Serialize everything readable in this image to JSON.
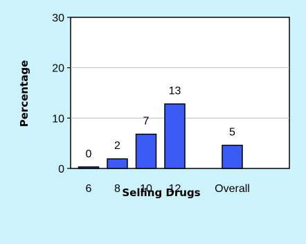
{
  "colors": {
    "background": "#ccf2fc",
    "plot_area": "#ffffff",
    "bar_fill": "#3a5cf5",
    "gridline": "#bfbfbf"
  },
  "chart_data": {
    "type": "bar",
    "title": "",
    "xlabel": "Selling Drugs",
    "ylabel": "Percentage",
    "categories": [
      "6",
      "8",
      "10",
      "12",
      "Overall"
    ],
    "category_slots": [
      0,
      1,
      2,
      3,
      5
    ],
    "values": [
      0.3,
      1.9,
      6.8,
      12.8,
      4.6
    ],
    "data_labels": [
      "0",
      "2",
      "7",
      "13",
      "5"
    ],
    "ylim": [
      0,
      30
    ],
    "yticks": [
      0,
      10,
      20,
      30
    ],
    "grid": true,
    "legend": "none"
  }
}
